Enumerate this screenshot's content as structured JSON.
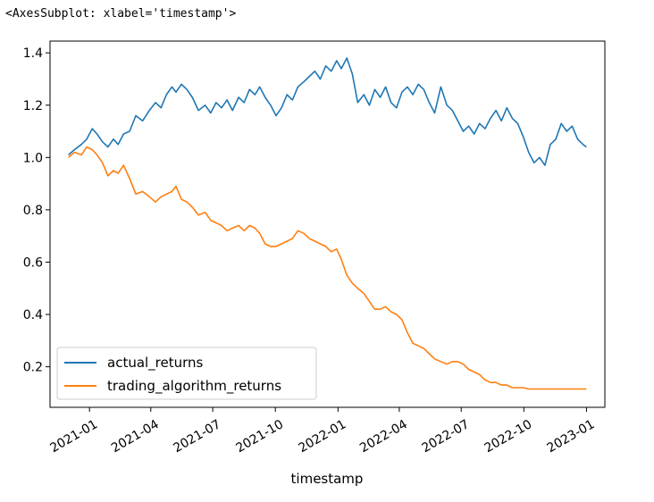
{
  "output_repr": "<AxesSubplot: xlabel='timestamp'>",
  "chart_data": {
    "type": "line",
    "xlabel": "timestamp",
    "ylabel": "",
    "title": "",
    "xlim": [
      "2020-11-04",
      "2023-01-28"
    ],
    "ylim": [
      0.045,
      1.445
    ],
    "x_ticks": [
      "2021-01",
      "2021-04",
      "2021-07",
      "2021-10",
      "2022-01",
      "2022-04",
      "2022-07",
      "2022-10",
      "2023-01"
    ],
    "x_tick_dates": [
      "2021-01-01",
      "2021-04-01",
      "2021-07-01",
      "2021-10-01",
      "2022-01-01",
      "2022-04-01",
      "2022-07-01",
      "2022-10-01",
      "2023-01-01"
    ],
    "y_ticks": [
      0.2,
      0.4,
      0.6,
      0.8,
      1.0,
      1.2,
      1.4
    ],
    "y_tick_labels": [
      "0.2",
      "0.4",
      "0.6",
      "0.8",
      "1.0",
      "1.2",
      "1.4"
    ],
    "grid": false,
    "legend_position": "lower-left",
    "series": [
      {
        "name": "actual_returns",
        "color": "#1f77b4",
        "x": [
          "2020-12-01",
          "2020-12-10",
          "2020-12-20",
          "2020-12-28",
          "2021-01-05",
          "2021-01-12",
          "2021-01-20",
          "2021-01-28",
          "2021-02-05",
          "2021-02-12",
          "2021-02-20",
          "2021-03-01",
          "2021-03-10",
          "2021-03-20",
          "2021-03-30",
          "2021-04-08",
          "2021-04-16",
          "2021-04-24",
          "2021-05-02",
          "2021-05-08",
          "2021-05-16",
          "2021-05-24",
          "2021-06-01",
          "2021-06-10",
          "2021-06-20",
          "2021-06-28",
          "2021-07-06",
          "2021-07-14",
          "2021-07-22",
          "2021-07-30",
          "2021-08-08",
          "2021-08-16",
          "2021-08-24",
          "2021-09-01",
          "2021-09-08",
          "2021-09-16",
          "2021-09-24",
          "2021-10-02",
          "2021-10-10",
          "2021-10-18",
          "2021-10-26",
          "2021-11-03",
          "2021-11-12",
          "2021-11-20",
          "2021-11-28",
          "2021-12-06",
          "2021-12-14",
          "2021-12-22",
          "2021-12-30",
          "2022-01-06",
          "2022-01-14",
          "2022-01-22",
          "2022-01-30",
          "2022-02-08",
          "2022-02-16",
          "2022-02-24",
          "2022-03-04",
          "2022-03-12",
          "2022-03-20",
          "2022-03-28",
          "2022-04-05",
          "2022-04-13",
          "2022-04-21",
          "2022-04-29",
          "2022-05-07",
          "2022-05-15",
          "2022-05-23",
          "2022-06-01",
          "2022-06-10",
          "2022-06-18",
          "2022-06-26",
          "2022-07-04",
          "2022-07-12",
          "2022-07-20",
          "2022-07-28",
          "2022-08-05",
          "2022-08-13",
          "2022-08-21",
          "2022-08-29",
          "2022-09-06",
          "2022-09-14",
          "2022-09-22",
          "2022-09-30",
          "2022-10-08",
          "2022-10-16",
          "2022-10-24",
          "2022-11-01",
          "2022-11-09",
          "2022-11-17",
          "2022-11-25",
          "2022-12-03",
          "2022-12-11",
          "2022-12-19",
          "2022-12-27",
          "2023-01-01"
        ],
        "y": [
          1.01,
          1.03,
          1.05,
          1.07,
          1.11,
          1.09,
          1.06,
          1.04,
          1.07,
          1.05,
          1.09,
          1.1,
          1.16,
          1.14,
          1.18,
          1.21,
          1.19,
          1.24,
          1.27,
          1.25,
          1.28,
          1.26,
          1.23,
          1.18,
          1.2,
          1.17,
          1.21,
          1.19,
          1.22,
          1.18,
          1.23,
          1.21,
          1.26,
          1.24,
          1.27,
          1.23,
          1.2,
          1.16,
          1.19,
          1.24,
          1.22,
          1.27,
          1.29,
          1.31,
          1.33,
          1.3,
          1.35,
          1.33,
          1.37,
          1.34,
          1.38,
          1.32,
          1.21,
          1.24,
          1.2,
          1.26,
          1.23,
          1.27,
          1.21,
          1.19,
          1.25,
          1.27,
          1.24,
          1.28,
          1.26,
          1.21,
          1.17,
          1.27,
          1.2,
          1.18,
          1.14,
          1.1,
          1.12,
          1.09,
          1.13,
          1.11,
          1.15,
          1.18,
          1.14,
          1.19,
          1.15,
          1.13,
          1.08,
          1.02,
          0.98,
          1.0,
          0.97,
          1.05,
          1.07,
          1.13,
          1.1,
          1.12,
          1.07,
          1.05,
          1.04
        ]
      },
      {
        "name": "trading_algorithm_returns",
        "color": "#ff7f0e",
        "x": [
          "2020-12-01",
          "2020-12-10",
          "2020-12-20",
          "2020-12-28",
          "2021-01-05",
          "2021-01-12",
          "2021-01-20",
          "2021-01-28",
          "2021-02-05",
          "2021-02-12",
          "2021-02-20",
          "2021-03-01",
          "2021-03-10",
          "2021-03-20",
          "2021-03-30",
          "2021-04-08",
          "2021-04-16",
          "2021-04-24",
          "2021-05-02",
          "2021-05-08",
          "2021-05-16",
          "2021-05-24",
          "2021-06-01",
          "2021-06-10",
          "2021-06-20",
          "2021-06-28",
          "2021-07-06",
          "2021-07-14",
          "2021-07-22",
          "2021-07-30",
          "2021-08-08",
          "2021-08-16",
          "2021-08-24",
          "2021-09-01",
          "2021-09-08",
          "2021-09-16",
          "2021-09-24",
          "2021-10-02",
          "2021-10-10",
          "2021-10-18",
          "2021-10-26",
          "2021-11-03",
          "2021-11-12",
          "2021-11-20",
          "2021-11-28",
          "2021-12-06",
          "2021-12-14",
          "2021-12-22",
          "2021-12-30",
          "2022-01-06",
          "2022-01-14",
          "2022-01-22",
          "2022-01-30",
          "2022-02-08",
          "2022-02-16",
          "2022-02-24",
          "2022-03-04",
          "2022-03-12",
          "2022-03-20",
          "2022-03-28",
          "2022-04-05",
          "2022-04-13",
          "2022-04-21",
          "2022-04-29",
          "2022-05-07",
          "2022-05-15",
          "2022-05-23",
          "2022-06-01",
          "2022-06-10",
          "2022-06-18",
          "2022-06-26",
          "2022-07-04",
          "2022-07-12",
          "2022-07-20",
          "2022-07-28",
          "2022-08-05",
          "2022-08-13",
          "2022-08-21",
          "2022-08-29",
          "2022-09-06",
          "2022-09-14",
          "2022-09-22",
          "2022-09-30",
          "2022-10-08",
          "2022-10-16",
          "2022-10-24",
          "2022-11-01",
          "2022-11-09",
          "2022-11-17",
          "2022-11-25",
          "2022-12-03",
          "2022-12-11",
          "2022-12-19",
          "2022-12-27",
          "2023-01-01"
        ],
        "y": [
          1.0,
          1.02,
          1.01,
          1.04,
          1.03,
          1.01,
          0.98,
          0.93,
          0.95,
          0.94,
          0.97,
          0.92,
          0.86,
          0.87,
          0.85,
          0.83,
          0.85,
          0.86,
          0.87,
          0.89,
          0.84,
          0.83,
          0.81,
          0.78,
          0.79,
          0.76,
          0.75,
          0.74,
          0.72,
          0.73,
          0.74,
          0.72,
          0.74,
          0.73,
          0.71,
          0.67,
          0.66,
          0.66,
          0.67,
          0.68,
          0.69,
          0.72,
          0.71,
          0.69,
          0.68,
          0.67,
          0.66,
          0.64,
          0.65,
          0.61,
          0.55,
          0.52,
          0.5,
          0.48,
          0.45,
          0.42,
          0.42,
          0.43,
          0.41,
          0.4,
          0.38,
          0.33,
          0.29,
          0.28,
          0.27,
          0.25,
          0.23,
          0.22,
          0.21,
          0.22,
          0.22,
          0.21,
          0.19,
          0.18,
          0.17,
          0.15,
          0.14,
          0.14,
          0.13,
          0.13,
          0.12,
          0.12,
          0.12,
          0.115,
          0.115,
          0.115,
          0.115,
          0.115,
          0.115,
          0.115,
          0.115,
          0.115,
          0.115,
          0.115,
          0.115
        ]
      }
    ]
  }
}
